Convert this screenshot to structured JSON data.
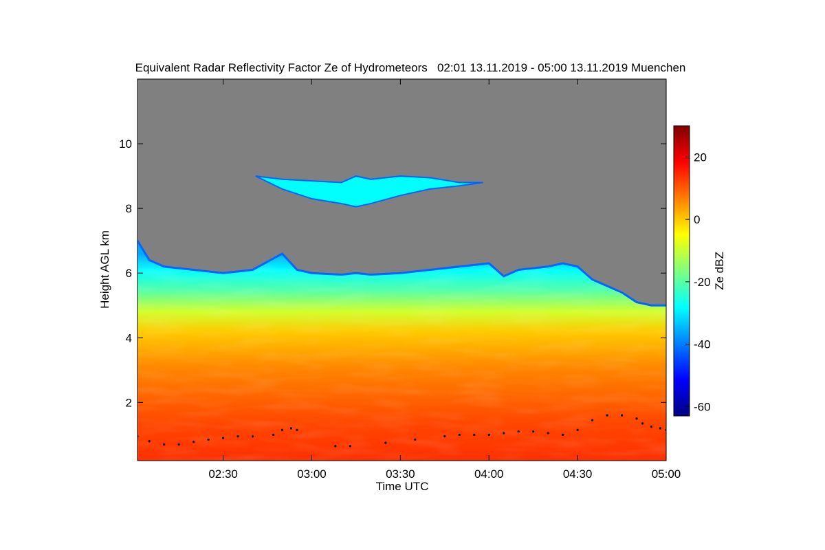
{
  "chart_data": {
    "type": "heatmap",
    "title": "Equivalent Radar Reflectivity Factor Ze of Hydrometeors   02:01 13.11.2019 - 05:00 13.11.2019 Muenchen",
    "xlabel": "Time UTC",
    "ylabel": "Height AGL km",
    "x_ticks": [
      "02:30",
      "03:00",
      "03:30",
      "04:00",
      "04:30",
      "05:00"
    ],
    "x_tick_minutes": [
      30,
      60,
      90,
      120,
      150,
      180
    ],
    "xlim_minutes": [
      1,
      180
    ],
    "y_ticks": [
      "2",
      "4",
      "6",
      "8",
      "10"
    ],
    "y_tick_values": [
      2,
      4,
      6,
      8,
      10
    ],
    "ylim": [
      0.2,
      12.0
    ],
    "colorbar": {
      "label": "Ze dBZ",
      "ticks": [
        "20",
        "0",
        "-20",
        "-40",
        "-60"
      ],
      "tick_values": [
        20,
        0,
        -20,
        -40,
        -60
      ],
      "range": [
        -63,
        30
      ],
      "colors": [
        "#00007f",
        "#0000ff",
        "#007fff",
        "#00ffff",
        "#7fff7f",
        "#ffff00",
        "#ff7f00",
        "#ff0000",
        "#7f0000"
      ]
    },
    "no_signal_color": "#808080",
    "lower_cloud_top_km": {
      "minutes": [
        1,
        5,
        10,
        20,
        30,
        40,
        50,
        55,
        60,
        70,
        75,
        80,
        90,
        100,
        110,
        120,
        125,
        130,
        140,
        145,
        150,
        155,
        160,
        165,
        170,
        175,
        180
      ],
      "top_km": [
        7.0,
        6.4,
        6.2,
        6.1,
        6.0,
        6.1,
        6.6,
        6.1,
        6.0,
        5.95,
        6.0,
        5.95,
        6.0,
        6.1,
        6.2,
        6.3,
        5.9,
        6.1,
        6.2,
        6.3,
        6.2,
        5.8,
        5.6,
        5.4,
        5.1,
        5.0,
        5.0
      ]
    },
    "upper_cloud_km": {
      "minutes": [
        41,
        50,
        60,
        70,
        75,
        80,
        90,
        100,
        110,
        118
      ],
      "top_km": [
        9.0,
        8.9,
        8.85,
        8.8,
        9.0,
        8.9,
        9.0,
        8.95,
        8.8,
        8.8
      ],
      "base_km": [
        9.0,
        8.6,
        8.3,
        8.15,
        8.05,
        8.15,
        8.4,
        8.6,
        8.7,
        8.8
      ]
    },
    "cloud_base_points": {
      "minutes": [
        1,
        5,
        10,
        15,
        20,
        25,
        30,
        35,
        40,
        47,
        50,
        53,
        55,
        68,
        73,
        85,
        95,
        105,
        110,
        115,
        120,
        125,
        130,
        135,
        140,
        145,
        150,
        155,
        160,
        165,
        170,
        172,
        175,
        178,
        180
      ],
      "height_km": [
        0.95,
        0.8,
        0.7,
        0.7,
        0.78,
        0.85,
        0.9,
        0.95,
        0.95,
        1.0,
        1.15,
        1.2,
        1.15,
        0.65,
        0.65,
        0.75,
        0.85,
        0.95,
        1.0,
        1.0,
        1.0,
        1.05,
        1.1,
        1.1,
        1.05,
        1.0,
        1.15,
        1.45,
        1.6,
        1.6,
        1.5,
        1.35,
        1.25,
        1.2,
        1.15
      ]
    }
  }
}
